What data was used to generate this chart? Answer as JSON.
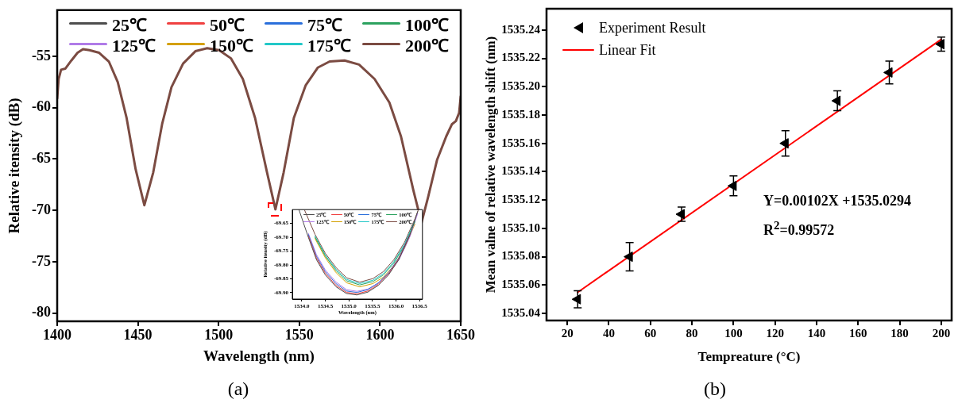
{
  "chart_data": [
    {
      "type": "line",
      "xlabel": "Wavelength (nm)",
      "ylabel": "Relative itensity (dB)",
      "xlim": [
        1400,
        1650
      ],
      "ylim": [
        -80.8,
        -50.5
      ],
      "xticks": [
        1400,
        1450,
        1500,
        1550,
        1600,
        1650
      ],
      "yticks": [
        -55,
        -60,
        -65,
        -70,
        -75,
        -80
      ],
      "grid": false,
      "legend": "top",
      "line_style": "solid",
      "x": [
        1400,
        1400.9,
        1402.4,
        1405,
        1408.8,
        1412.6,
        1416,
        1420,
        1426,
        1432,
        1437.5,
        1443,
        1448.6,
        1454,
        1459.5,
        1465,
        1470.8,
        1478,
        1485.6,
        1492.9,
        1500.3,
        1507.7,
        1515,
        1522.6,
        1530,
        1535.2,
        1540.3,
        1546.6,
        1554,
        1561.4,
        1568.8,
        1578,
        1587,
        1596.6,
        1605.8,
        1613,
        1620.6,
        1625.7,
        1629.8,
        1635.3,
        1641,
        1644.6,
        1647,
        1649,
        1650
      ],
      "series": [
        {
          "name": "25℃",
          "color": "#4d4d4d",
          "values": [
            null,
            null,
            null,
            null,
            null,
            null,
            null,
            null,
            null,
            null,
            null,
            null,
            null,
            null,
            null,
            null,
            null,
            null,
            null,
            null,
            null,
            null,
            null,
            null,
            null,
            null,
            null,
            null,
            null,
            null,
            null,
            null,
            null,
            null,
            null,
            null,
            null,
            null,
            null,
            null,
            null,
            null,
            null,
            null,
            null
          ]
        },
        {
          "name": "50℃",
          "color": "#f04040",
          "values": [
            null,
            null,
            null,
            null,
            null,
            null,
            null,
            null,
            null,
            null,
            null,
            null,
            null,
            null,
            null,
            null,
            null,
            null,
            null,
            null,
            null,
            null,
            null,
            null,
            null,
            null,
            null,
            null,
            null,
            null,
            null,
            null,
            null,
            null,
            null,
            null,
            null,
            null,
            null,
            null,
            null,
            null,
            null,
            null,
            null
          ]
        },
        {
          "name": "75℃",
          "color": "#2a6fdb",
          "values": [
            null,
            null,
            null,
            null,
            null,
            null,
            null,
            null,
            null,
            null,
            null,
            null,
            null,
            null,
            null,
            null,
            null,
            null,
            null,
            null,
            null,
            null,
            null,
            null,
            null,
            null,
            null,
            null,
            null,
            null,
            null,
            null,
            null,
            null,
            null,
            null,
            null,
            null,
            null,
            null,
            null,
            null,
            null,
            null,
            null
          ]
        },
        {
          "name": "100℃",
          "color": "#2ca25f",
          "values": [
            null,
            null,
            null,
            null,
            null,
            null,
            null,
            null,
            null,
            null,
            null,
            null,
            null,
            null,
            null,
            null,
            null,
            null,
            null,
            null,
            null,
            null,
            null,
            null,
            null,
            null,
            null,
            null,
            null,
            null,
            null,
            null,
            null,
            null,
            null,
            null,
            null,
            null,
            null,
            null,
            null,
            null,
            null,
            null,
            null
          ]
        },
        {
          "name": "125℃",
          "color": "#b07be8",
          "values": [
            null,
            null,
            null,
            null,
            null,
            null,
            null,
            null,
            null,
            null,
            null,
            null,
            null,
            null,
            null,
            null,
            null,
            null,
            null,
            null,
            null,
            null,
            null,
            null,
            null,
            null,
            null,
            null,
            null,
            null,
            null,
            null,
            null,
            null,
            null,
            null,
            null,
            null,
            null,
            null,
            null,
            null,
            null,
            null,
            null
          ]
        },
        {
          "name": "150℃",
          "color": "#d4a000",
          "values": [
            null,
            null,
            null,
            null,
            null,
            null,
            null,
            null,
            null,
            null,
            null,
            null,
            null,
            null,
            null,
            null,
            null,
            null,
            null,
            null,
            null,
            null,
            null,
            null,
            null,
            null,
            null,
            null,
            null,
            null,
            null,
            null,
            null,
            null,
            null,
            null,
            null,
            null,
            null,
            null,
            null,
            null,
            null,
            null,
            null
          ]
        },
        {
          "name": "175℃",
          "color": "#22c8c8",
          "values": [
            null,
            null,
            null,
            null,
            null,
            null,
            null,
            null,
            null,
            null,
            null,
            null,
            null,
            null,
            null,
            null,
            null,
            null,
            null,
            null,
            null,
            null,
            null,
            null,
            null,
            null,
            null,
            null,
            null,
            null,
            null,
            null,
            null,
            null,
            null,
            null,
            null,
            null,
            null,
            null,
            null,
            null,
            null,
            null,
            null
          ]
        },
        {
          "name": "200℃",
          "color": "#7b4b42",
          "values": [
            -59.1,
            -57.2,
            -56.3,
            -56.2,
            -55.4,
            -54.65,
            -54.3,
            -54.4,
            -54.65,
            -55.5,
            -57.5,
            -61,
            -66,
            -69.5,
            -66.3,
            -61.6,
            -58,
            -55.7,
            -54.5,
            -54.2,
            -54.4,
            -55.2,
            -57.2,
            -61,
            -66.3,
            -69.9,
            -66.3,
            -61,
            -57.8,
            -56.1,
            -55.5,
            -55.4,
            -55.8,
            -57.2,
            -59.5,
            -62.8,
            -68,
            -71.2,
            -68.7,
            -65.1,
            -62.8,
            -61.6,
            -61.3,
            -60.5,
            -58.9
          ]
        }
      ],
      "annotations": [
        "(a)"
      ]
    },
    {
      "type": "line",
      "xlabel": "Wavelength (nm)",
      "ylabel": "Relative itensity (dB)",
      "xlim": [
        1533.8,
        1536.56
      ],
      "ylim": [
        -69.923,
        -69.6
      ],
      "xticks": [
        {
          "value": 1534,
          "label": "1534.0"
        },
        1534.5,
        {
          "value": 1535,
          "label": "1535.0"
        },
        1535.5,
        {
          "value": 1536,
          "label": "1536.0"
        },
        1536.5
      ],
      "yticks": [
        -69.65,
        {
          "value": -69.7,
          "label": "-69.70"
        },
        -69.75,
        {
          "value": -69.8,
          "label": "-69.80"
        },
        -69.85,
        {
          "value": -69.9,
          "label": "-69.90"
        }
      ],
      "grid": false,
      "legend": "top",
      "line_style": "solid",
      "series": [
        {
          "name": "25℃",
          "color": "#4d4d4d",
          "x": [
            1533.94,
            1534.14,
            1534.31,
            1534.5,
            1534.73,
            1534.95,
            1535.17,
            1535.4,
            1535.62,
            1535.84,
            1536.06,
            1536.29,
            1536.46
          ],
          "values": [
            -69.6,
            -69.7,
            -69.78,
            -69.836,
            -69.879,
            -69.903,
            -69.908,
            -69.898,
            -69.874,
            -69.836,
            -69.78,
            -69.693,
            -69.607
          ]
        },
        {
          "name": "50℃",
          "color": "#f04040",
          "x": [
            1534.14,
            1534.31,
            1534.5,
            1534.73,
            1534.95,
            1535.17,
            1535.4,
            1535.62,
            1535.84,
            1536.06,
            1536.29
          ],
          "values": [
            -69.695,
            -69.774,
            -69.83,
            -69.874,
            -69.899,
            -69.904,
            -69.894,
            -69.87,
            -69.832,
            -69.777,
            -69.692
          ]
        },
        {
          "name": "75℃",
          "color": "#2a6fdb",
          "x": [
            1534.14,
            1534.31,
            1534.5,
            1534.73,
            1534.95,
            1535.17,
            1535.4,
            1535.62,
            1535.84,
            1536.06,
            1536.29
          ],
          "values": [
            -69.69,
            -69.768,
            -69.824,
            -69.868,
            -69.894,
            -69.899,
            -69.889,
            -69.865,
            -69.828,
            -69.774,
            -69.69
          ]
        },
        {
          "name": "100℃",
          "color": "#2ca25f",
          "x": [
            1534.28,
            1534.5,
            1534.73,
            1534.95,
            1535.23,
            1535.51,
            1535.73,
            1535.95,
            1536.18,
            1536.4
          ],
          "values": [
            -69.699,
            -69.768,
            -69.821,
            -69.857,
            -69.872,
            -69.86,
            -69.836,
            -69.794,
            -69.73,
            -69.644
          ]
        },
        {
          "name": "125℃",
          "color": "#b07be8",
          "x": [
            1534.14,
            1534.31,
            1534.5,
            1534.73,
            1534.95,
            1535.17,
            1535.4,
            1535.62,
            1535.84,
            1536.06,
            1536.29,
            1536.46
          ],
          "values": [
            -69.686,
            -69.762,
            -69.818,
            -69.862,
            -69.889,
            -69.895,
            -69.887,
            -69.866,
            -69.832,
            -69.782,
            -69.7,
            -69.614
          ]
        },
        {
          "name": "150℃",
          "color": "#d4a000",
          "x": [
            1534.28,
            1534.5,
            1534.73,
            1534.95,
            1535.23,
            1535.51,
            1535.73,
            1535.95,
            1536.18,
            1536.4
          ],
          "values": [
            -69.704,
            -69.774,
            -69.828,
            -69.864,
            -69.879,
            -69.867,
            -69.844,
            -69.803,
            -69.74,
            -69.652
          ]
        },
        {
          "name": "175℃",
          "color": "#22c8c8",
          "x": [
            1534.28,
            1534.5,
            1534.73,
            1534.95,
            1535.23,
            1535.51,
            1535.73,
            1535.95,
            1536.18,
            1536.4
          ],
          "values": [
            -69.695,
            -69.764,
            -69.816,
            -69.852,
            -69.867,
            -69.855,
            -69.831,
            -69.789,
            -69.725,
            -69.64
          ]
        },
        {
          "name": "200℃",
          "color": "#7b4b42",
          "x": [
            1534.06,
            1534.28,
            1534.5,
            1534.73,
            1534.95,
            1535.23,
            1535.51,
            1535.73,
            1535.95,
            1536.18,
            1536.4,
            1536.47
          ],
          "values": [
            -69.602,
            -69.689,
            -69.758,
            -69.81,
            -69.846,
            -69.862,
            -69.849,
            -69.824,
            -69.782,
            -69.718,
            -69.634,
            -69.602
          ]
        }
      ]
    },
    {
      "type": "scatter",
      "xlabel": "Tempreature (°C)",
      "ylabel": "Mean valne of relative wavelength shift (nm)",
      "xlim": [
        10,
        205
      ],
      "ylim": [
        1535.035,
        1535.255
      ],
      "xticks": [
        20,
        40,
        60,
        80,
        100,
        120,
        140,
        160,
        180,
        200
      ],
      "yticks": [
        {
          "value": 1535.04,
          "label": "1535.04"
        },
        {
          "value": 1535.06,
          "label": "1535.06"
        },
        {
          "value": 1535.08,
          "label": "1535.08"
        },
        {
          "value": 1535.1,
          "label": "1535.10"
        },
        {
          "value": 1535.12,
          "label": "1535.12"
        },
        {
          "value": 1535.14,
          "label": "1535.14"
        },
        {
          "value": 1535.16,
          "label": "1535.16"
        },
        {
          "value": 1535.18,
          "label": "1535.18"
        },
        {
          "value": 1535.2,
          "label": "1535.20"
        },
        {
          "value": 1535.22,
          "label": "1535.22"
        },
        {
          "value": 1535.24,
          "label": "1535.24"
        }
      ],
      "grid": false,
      "legend": "top left",
      "series": [
        {
          "name": "Experiment Result",
          "color": "#000000",
          "marker": "triangle",
          "x": [
            25,
            50,
            75,
            100,
            125,
            150,
            175,
            200
          ],
          "values": [
            1535.05,
            1535.08,
            1535.11,
            1535.13,
            1535.16,
            1535.19,
            1535.21,
            1535.23
          ],
          "errors": [
            0.006,
            0.01,
            0.005,
            0.007,
            0.009,
            0.007,
            0.008,
            0.005
          ]
        },
        {
          "name": "Linear Fit",
          "type": "line",
          "color": "#ff0000",
          "marker": "none",
          "x": [
            25,
            200
          ],
          "values": [
            1535.0549,
            1535.2334
          ]
        }
      ],
      "annotations": [
        "Y=0.00102X +1535.0294",
        "R$^{2}$=0.99572",
        "(b)"
      ]
    }
  ]
}
